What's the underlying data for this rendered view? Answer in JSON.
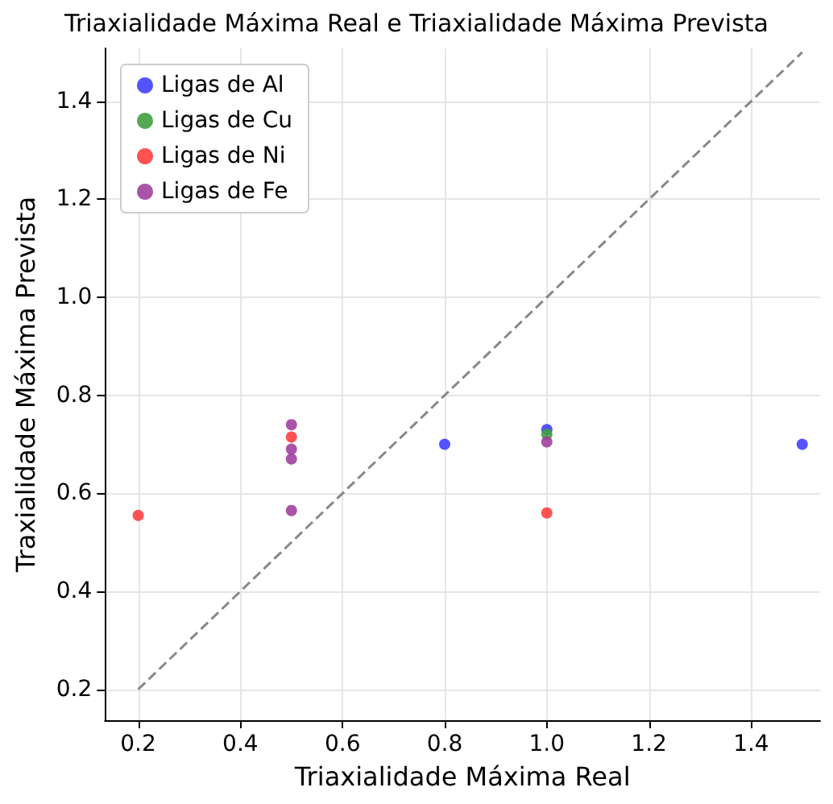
{
  "chart_data": {
    "type": "scatter",
    "title": "Triaxialidade Máxima Real e Triaxialidade Máxima Prevista",
    "xlabel": "Triaxialidade Máxima Real",
    "ylabel": "Traxialidade Máxima Prevista",
    "series": [
      {
        "name": "Ligas de Al",
        "color": "#4040ff",
        "x": [
          0.8,
          1.0,
          1.5
        ],
        "values": [
          0.7,
          0.73,
          0.7
        ]
      },
      {
        "name": "Ligas de Cu",
        "color": "#40a040",
        "x": [
          1.0
        ],
        "values": [
          0.72
        ]
      },
      {
        "name": "Ligas de Ni",
        "color": "#ff4040",
        "x": [
          0.2,
          1.0,
          0.5
        ],
        "values": [
          0.555,
          0.56,
          0.715
        ]
      },
      {
        "name": "Ligas de Fe",
        "color": "#a040a0",
        "x": [
          0.5,
          0.5,
          0.5,
          0.5,
          1.0
        ],
        "values": [
          0.74,
          0.69,
          0.67,
          0.565,
          0.705
        ]
      },
      {
        "type": "line",
        "color": "#888888",
        "line_style": "dashed",
        "marker": "none",
        "x": [
          0.2,
          1.5
        ],
        "values": [
          0.2,
          1.5
        ]
      }
    ],
    "xlim": [
      0.135,
      1.535
    ],
    "ylim": [
      0.137,
      1.508
    ],
    "xticks": [
      0.2,
      0.4,
      0.6,
      0.8,
      {
        "value": 1,
        "label": "1.0"
      },
      1.2,
      1.4
    ],
    "yticks": [
      0.2,
      0.4,
      0.6,
      0.8,
      {
        "value": 1,
        "label": "1.0"
      },
      1.2,
      1.4
    ],
    "grid": true,
    "legend": "top left",
    "marker": "circle"
  }
}
